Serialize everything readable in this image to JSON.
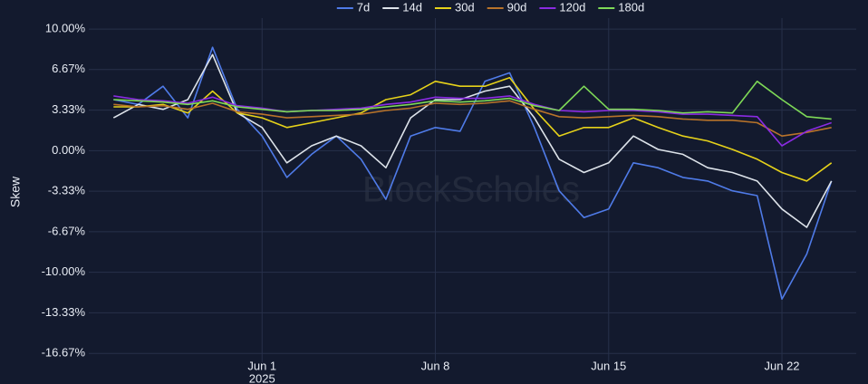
{
  "chart_data": {
    "type": "line",
    "y_label": "Skew",
    "watermark": "BlockScholes",
    "background": "#131a2e",
    "grid": true,
    "legend": "top",
    "x": [
      "2025-05-26",
      "2025-05-27",
      "2025-05-28",
      "2025-05-29",
      "2025-05-30",
      "2025-05-31",
      "2025-06-01",
      "2025-06-02",
      "2025-06-03",
      "2025-06-04",
      "2025-06-05",
      "2025-06-06",
      "2025-06-07",
      "2025-06-08",
      "2025-06-09",
      "2025-06-10",
      "2025-06-11",
      "2025-06-12",
      "2025-06-13",
      "2025-06-14",
      "2025-06-15",
      "2025-06-16",
      "2025-06-17",
      "2025-06-18",
      "2025-06-19",
      "2025-06-20",
      "2025-06-21",
      "2025-06-22",
      "2025-06-23",
      "2025-06-24"
    ],
    "xlim": [
      "2025-05-25",
      "2025-06-25"
    ],
    "xticks": [
      {
        "value": "2025-06-01",
        "label": [
          "Jun 1",
          "2025"
        ]
      },
      {
        "value": "2025-06-08",
        "label": "Jun 8"
      },
      {
        "value": "2025-06-15",
        "label": "Jun 15"
      },
      {
        "value": "2025-06-22",
        "label": "Jun 22"
      }
    ],
    "ylim": [
      -17.4,
      10.9
    ],
    "yticks": [
      {
        "value": 10,
        "label": "10.00%"
      },
      {
        "value": 6.67,
        "label": "6.67%"
      },
      {
        "value": 3.33,
        "label": "3.33%"
      },
      {
        "value": 0,
        "label": "0.00%"
      },
      {
        "value": -3.33,
        "label": "-3.33%"
      },
      {
        "value": -6.67,
        "label": "-6.67%"
      },
      {
        "value": -10,
        "label": "-10.00%"
      },
      {
        "value": -13.33,
        "label": "-13.33%"
      },
      {
        "value": -16.67,
        "label": "-16.67%"
      }
    ],
    "series": [
      {
        "name": "7d",
        "color": "#4f7be8",
        "values": [
          4.2,
          3.8,
          5.3,
          2.7,
          8.5,
          3.4,
          1.2,
          -2.2,
          -0.3,
          1.2,
          -0.7,
          -4.0,
          1.2,
          1.9,
          1.6,
          5.7,
          6.4,
          1.9,
          -3.3,
          -5.5,
          -4.8,
          -1.0,
          -1.4,
          -2.2,
          -2.5,
          -3.3,
          -3.7,
          -12.2,
          -8.5,
          -2.5
        ]
      },
      {
        "name": "14d",
        "color": "#dde3ea",
        "values": [
          2.7,
          3.8,
          3.4,
          4.2,
          7.9,
          3.1,
          1.9,
          -1.0,
          0.4,
          1.2,
          0.4,
          -1.4,
          2.7,
          4.2,
          4.2,
          4.9,
          5.3,
          2.7,
          -0.7,
          -1.8,
          -1.0,
          1.2,
          0.1,
          -0.3,
          -1.4,
          -1.8,
          -2.5,
          -4.8,
          -6.3,
          -2.5
        ]
      },
      {
        "name": "30d",
        "color": "#e6d21a",
        "values": [
          3.6,
          3.6,
          3.8,
          3.1,
          4.9,
          3.1,
          2.7,
          1.9,
          2.3,
          2.7,
          3.1,
          4.2,
          4.6,
          5.7,
          5.3,
          5.3,
          6.0,
          3.4,
          1.2,
          1.9,
          1.9,
          2.7,
          1.9,
          1.2,
          0.8,
          0.1,
          -0.7,
          -1.8,
          -2.5,
          -1.0
        ]
      },
      {
        "name": "90d",
        "color": "#b8732a",
        "values": [
          3.8,
          3.6,
          3.7,
          3.4,
          3.9,
          3.2,
          3.0,
          2.7,
          2.8,
          2.9,
          3.0,
          3.3,
          3.5,
          3.9,
          3.8,
          3.9,
          4.1,
          3.4,
          2.8,
          2.7,
          2.8,
          2.9,
          2.8,
          2.6,
          2.5,
          2.5,
          2.3,
          1.2,
          1.5,
          1.9
        ]
      },
      {
        "name": "120d",
        "color": "#8a2be2",
        "values": [
          4.5,
          4.2,
          4.1,
          3.9,
          4.4,
          3.7,
          3.5,
          3.2,
          3.3,
          3.4,
          3.5,
          3.8,
          4.0,
          4.4,
          4.3,
          4.3,
          4.5,
          3.8,
          3.3,
          3.2,
          3.3,
          3.3,
          3.2,
          3.0,
          3.0,
          2.9,
          2.8,
          0.4,
          1.6,
          2.3
        ]
      },
      {
        "name": "180d",
        "color": "#7ed957",
        "values": [
          4.2,
          4.1,
          4.0,
          3.8,
          4.1,
          3.6,
          3.4,
          3.2,
          3.3,
          3.3,
          3.4,
          3.6,
          3.8,
          4.1,
          4.0,
          4.1,
          4.3,
          3.7,
          3.3,
          5.3,
          3.4,
          3.4,
          3.3,
          3.1,
          3.2,
          3.1,
          5.7,
          4.2,
          2.8,
          2.6
        ]
      }
    ]
  }
}
